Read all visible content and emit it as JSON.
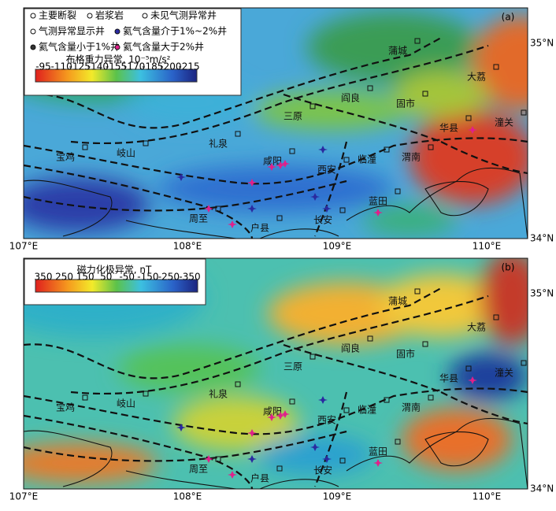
{
  "panels": [
    {
      "label": "(a)",
      "colorbar": {
        "title": "布格重力异常, 10⁻⁵m/s²",
        "ticks": [
          "-95",
          "-110",
          "-125",
          "-140",
          "-155",
          "-170",
          "-185",
          "-200",
          "-215"
        ]
      }
    },
    {
      "label": "(b)",
      "colorbar": {
        "title": "磁力化极异常, nT",
        "ticks": [
          "350",
          "250",
          "150",
          "50",
          "-50",
          "-150",
          "-250",
          "-350"
        ]
      }
    }
  ],
  "legend": [
    "主要断裂",
    "岩浆岩",
    "未见气测异常井",
    "气测异常显示井",
    "氦气含量介于1%~2%井",
    "氦气含量小于1%井",
    "氦气含量大于2%井"
  ],
  "cities": [
    "蒲城",
    "大荔",
    "阎良",
    "固市",
    "三原",
    "华县",
    "潼关",
    "礼泉",
    "宝鸡",
    "岐山",
    "临潼",
    "渭南",
    "咸阳",
    "西安",
    "蓝田",
    "周至",
    "户县",
    "长安"
  ],
  "x_axis": [
    "107°E",
    "108°E",
    "109°E",
    "110°E"
  ],
  "y_axis": [
    "35°N",
    "34°N"
  ]
}
